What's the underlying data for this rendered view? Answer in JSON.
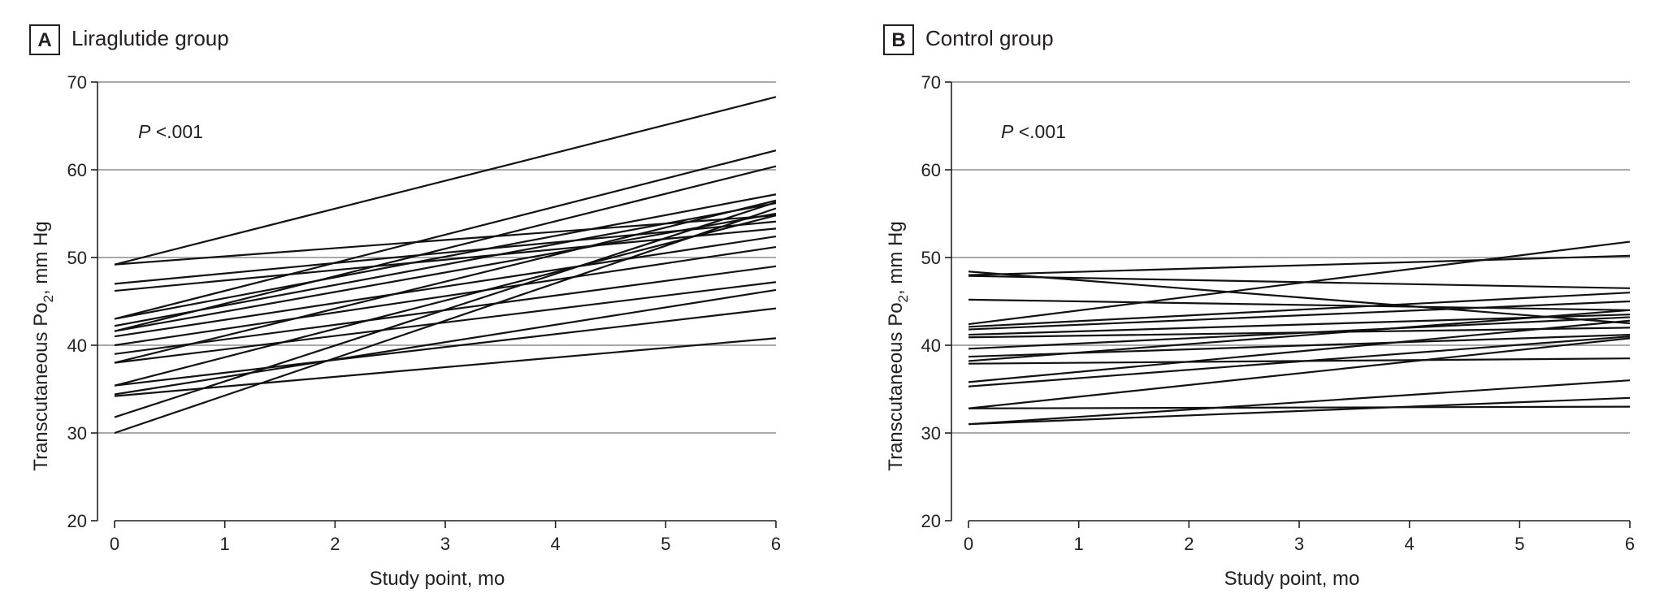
{
  "colors": {
    "ink": "#231f20",
    "grid": "#a7a9ac",
    "line": "#111111"
  },
  "chart_data": [
    {
      "type": "line",
      "panel": "A",
      "title": "Liraglutide group",
      "xlabel": "Study point, mo",
      "ylabel_main": "Transcutaneous Po",
      "ylabel_sub": "2",
      "ylabel_end": ", mm Hg",
      "annotation_italic": "P",
      "annotation_text": " <.001",
      "x": [
        0,
        6
      ],
      "xlim": [
        0,
        6
      ],
      "ylim": [
        20,
        70
      ],
      "xticks": [
        0,
        1,
        2,
        3,
        4,
        5,
        6
      ],
      "xtick_labels": [
        "0",
        "1",
        "2",
        "3",
        "4",
        "5",
        "6"
      ],
      "yticks": [
        20,
        30,
        40,
        50,
        60,
        70
      ],
      "ytick_labels": [
        "20",
        "30",
        "40",
        "50",
        "60",
        "70"
      ],
      "gridlines": [
        30,
        40,
        50,
        60,
        70
      ],
      "series": [
        {
          "name": "1",
          "values": [
            49.2,
            68.3
          ]
        },
        {
          "name": "2",
          "values": [
            43.0,
            62.2
          ]
        },
        {
          "name": "3",
          "values": [
            41.6,
            60.4
          ]
        },
        {
          "name": "4",
          "values": [
            49.2,
            54.8
          ]
        },
        {
          "name": "5",
          "values": [
            47.0,
            54.1
          ]
        },
        {
          "name": "6",
          "values": [
            46.2,
            53.3
          ]
        },
        {
          "name": "7",
          "values": [
            43.0,
            57.2
          ]
        },
        {
          "name": "8",
          "values": [
            42.2,
            56.2
          ]
        },
        {
          "name": "9",
          "values": [
            41.6,
            55.0
          ]
        },
        {
          "name": "10",
          "values": [
            41.0,
            52.4
          ]
        },
        {
          "name": "11",
          "values": [
            40.0,
            51.2
          ]
        },
        {
          "name": "12",
          "values": [
            38.0,
            56.5
          ]
        },
        {
          "name": "13",
          "values": [
            35.4,
            54.8
          ]
        },
        {
          "name": "14",
          "values": [
            39.0,
            49.0
          ]
        },
        {
          "name": "15",
          "values": [
            38.0,
            47.2
          ]
        },
        {
          "name": "16",
          "values": [
            34.4,
            46.3
          ]
        },
        {
          "name": "17",
          "values": [
            31.8,
            56.3
          ]
        },
        {
          "name": "18",
          "values": [
            30.0,
            55.6
          ]
        },
        {
          "name": "19",
          "values": [
            35.4,
            44.2
          ]
        },
        {
          "name": "20",
          "values": [
            34.2,
            40.8
          ]
        }
      ]
    },
    {
      "type": "line",
      "panel": "B",
      "title": "Control group",
      "xlabel": "Study point, mo",
      "ylabel_main": "Transcutaneous Po",
      "ylabel_sub": "2",
      "ylabel_end": ", mm Hg",
      "annotation_italic": "P",
      "annotation_text": " <.001",
      "x": [
        0,
        6
      ],
      "xlim": [
        0,
        6
      ],
      "ylim": [
        20,
        70
      ],
      "xticks": [
        0,
        1,
        2,
        3,
        4,
        5,
        6
      ],
      "xtick_labels": [
        "0",
        "1",
        "2",
        "3",
        "4",
        "5",
        "6"
      ],
      "yticks": [
        20,
        30,
        40,
        50,
        60,
        70
      ],
      "ytick_labels": [
        "20",
        "30",
        "40",
        "50",
        "60",
        "70"
      ],
      "gridlines": [
        30,
        40,
        50,
        60,
        70
      ],
      "series": [
        {
          "name": "1",
          "values": [
            48.4,
            42.5
          ]
        },
        {
          "name": "2",
          "values": [
            48.0,
            50.2
          ]
        },
        {
          "name": "3",
          "values": [
            47.9,
            46.5
          ]
        },
        {
          "name": "4",
          "values": [
            45.2,
            44.0
          ]
        },
        {
          "name": "5",
          "values": [
            42.4,
            51.8
          ]
        },
        {
          "name": "6",
          "values": [
            42.1,
            46.0
          ]
        },
        {
          "name": "7",
          "values": [
            41.8,
            45.0
          ]
        },
        {
          "name": "8",
          "values": [
            41.2,
            43.5
          ]
        },
        {
          "name": "9",
          "values": [
            40.9,
            42.0
          ]
        },
        {
          "name": "10",
          "values": [
            39.6,
            43.2
          ]
        },
        {
          "name": "11",
          "values": [
            38.7,
            41.2
          ]
        },
        {
          "name": "12",
          "values": [
            38.2,
            44.0
          ]
        },
        {
          "name": "13",
          "values": [
            37.9,
            38.5
          ]
        },
        {
          "name": "14",
          "values": [
            35.8,
            42.8
          ]
        },
        {
          "name": "15",
          "values": [
            35.3,
            41.0
          ]
        },
        {
          "name": "16",
          "values": [
            32.8,
            33.0
          ]
        },
        {
          "name": "17",
          "values": [
            32.8,
            40.8
          ]
        },
        {
          "name": "18",
          "values": [
            31.0,
            36.0
          ]
        },
        {
          "name": "19",
          "values": [
            31.0,
            34.0
          ]
        }
      ]
    }
  ]
}
